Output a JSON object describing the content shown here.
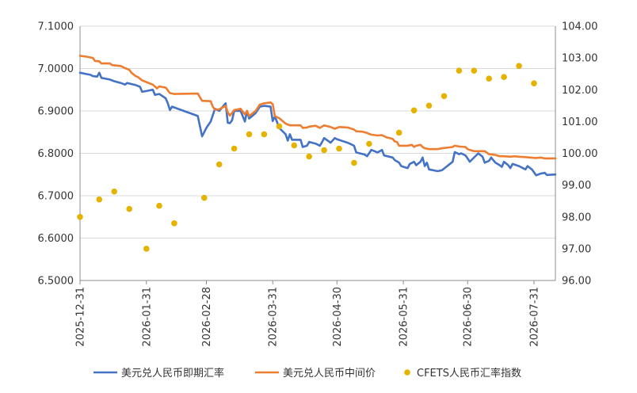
{
  "chart_data": {
    "type": "line",
    "title": "",
    "xlabel": "",
    "ylabel": "",
    "x_tick_labels": [
      "2025-12-31",
      "2026-01-31",
      "2026-02-28",
      "2026-03-31",
      "2026-04-30",
      "2026-05-31",
      "2026-06-30",
      "2026-07-31"
    ],
    "xlim": [
      "2025-12-31",
      "2026-08-10"
    ],
    "y_left": {
      "ylim": [
        6.5,
        7.1
      ],
      "tick_labels": [
        "6.5000",
        "6.6000",
        "6.7000",
        "6.8000",
        "6.9000",
        "7.0000",
        "7.1000"
      ]
    },
    "y_right": {
      "ylim": [
        96.0,
        104.0
      ],
      "tick_labels": [
        "96.00",
        "97.00",
        "98.00",
        "99.00",
        "100.00",
        "101.00",
        "102.00",
        "103.00",
        "104.00"
      ]
    },
    "grid": "horizontal",
    "legend_position": "bottom",
    "series": [
      {
        "name": "美元兑人民币即期汇率",
        "type": "line",
        "axis": "left",
        "color": "#4472C4",
        "points": [
          [
            "2025-12-31",
            6.99
          ],
          [
            "2026-01-05",
            6.985
          ],
          [
            "2026-01-06",
            6.982
          ],
          [
            "2026-01-08",
            6.981
          ],
          [
            "2026-01-09",
            6.99
          ],
          [
            "2026-01-10",
            6.978
          ],
          [
            "2026-01-14",
            6.974
          ],
          [
            "2026-01-16",
            6.97
          ],
          [
            "2026-01-19",
            6.966
          ],
          [
            "2026-01-21",
            6.962
          ],
          [
            "2026-01-22",
            6.966
          ],
          [
            "2026-01-26",
            6.961
          ],
          [
            "2026-01-28",
            6.957
          ],
          [
            "2026-01-29",
            6.945
          ],
          [
            "2026-01-31",
            6.947
          ],
          [
            "2026-02-03",
            6.95
          ],
          [
            "2026-02-04",
            6.938
          ],
          [
            "2026-02-06",
            6.94
          ],
          [
            "2026-02-09",
            6.93
          ],
          [
            "2026-02-10",
            6.918
          ],
          [
            "2026-02-11",
            6.902
          ],
          [
            "2026-02-12",
            6.91
          ],
          [
            "2026-02-24",
            6.888
          ],
          [
            "2026-02-26",
            6.84
          ],
          [
            "2026-02-28",
            6.86
          ],
          [
            "2026-03-02",
            6.875
          ],
          [
            "2026-03-04",
            6.905
          ],
          [
            "2026-03-06",
            6.9
          ],
          [
            "2026-03-09",
            6.918
          ],
          [
            "2026-03-10",
            6.872
          ],
          [
            "2026-03-11",
            6.871
          ],
          [
            "2026-03-12",
            6.878
          ],
          [
            "2026-03-13",
            6.9
          ],
          [
            "2026-03-16",
            6.9
          ],
          [
            "2026-03-18",
            6.875
          ],
          [
            "2026-03-19",
            6.9
          ],
          [
            "2026-03-20",
            6.882
          ],
          [
            "2026-03-23",
            6.895
          ],
          [
            "2026-03-25",
            6.91
          ],
          [
            "2026-03-27",
            6.912
          ],
          [
            "2026-03-30",
            6.91
          ],
          [
            "2026-03-31",
            6.876
          ],
          [
            "2026-04-01",
            6.887
          ],
          [
            "2026-04-02",
            6.874
          ],
          [
            "2026-04-03",
            6.86
          ],
          [
            "2026-04-06",
            6.845
          ],
          [
            "2026-04-07",
            6.83
          ],
          [
            "2026-04-08",
            6.845
          ],
          [
            "2026-04-09",
            6.832
          ],
          [
            "2026-04-13",
            6.832
          ],
          [
            "2026-04-14",
            6.815
          ],
          [
            "2026-04-16",
            6.818
          ],
          [
            "2026-04-17",
            6.827
          ],
          [
            "2026-04-20",
            6.823
          ],
          [
            "2026-04-22",
            6.818
          ],
          [
            "2026-04-23",
            6.826
          ],
          [
            "2026-04-24",
            6.836
          ],
          [
            "2026-04-27",
            6.825
          ],
          [
            "2026-04-29",
            6.836
          ],
          [
            "2026-04-30",
            6.833
          ],
          [
            "2026-05-05",
            6.825
          ],
          [
            "2026-05-08",
            6.818
          ],
          [
            "2026-05-09",
            6.802
          ],
          [
            "2026-05-13",
            6.797
          ],
          [
            "2026-05-14",
            6.793
          ],
          [
            "2026-05-15",
            6.8
          ],
          [
            "2026-05-16",
            6.808
          ],
          [
            "2026-05-19",
            6.802
          ],
          [
            "2026-05-21",
            6.808
          ],
          [
            "2026-05-22",
            6.795
          ],
          [
            "2026-05-26",
            6.79
          ],
          [
            "2026-05-27",
            6.784
          ],
          [
            "2026-05-29",
            6.778
          ],
          [
            "2026-05-30",
            6.77
          ],
          [
            "2026-06-02",
            6.765
          ],
          [
            "2026-06-03",
            6.775
          ],
          [
            "2026-06-05",
            6.78
          ],
          [
            "2026-06-06",
            6.772
          ],
          [
            "2026-06-08",
            6.78
          ],
          [
            "2026-06-09",
            6.79
          ],
          [
            "2026-06-10",
            6.77
          ],
          [
            "2026-06-11",
            6.778
          ],
          [
            "2026-06-12",
            6.762
          ],
          [
            "2026-06-16",
            6.758
          ],
          [
            "2026-06-18",
            6.76
          ],
          [
            "2026-06-20",
            6.768
          ],
          [
            "2026-06-23",
            6.78
          ],
          [
            "2026-06-24",
            6.803
          ],
          [
            "2026-06-26",
            6.798
          ],
          [
            "2026-06-27",
            6.8
          ],
          [
            "2026-06-29",
            6.795
          ],
          [
            "2026-06-30",
            6.788
          ],
          [
            "2026-07-01",
            6.78
          ],
          [
            "2026-07-02",
            6.785
          ],
          [
            "2026-07-05",
            6.8
          ],
          [
            "2026-07-07",
            6.792
          ],
          [
            "2026-07-08",
            6.778
          ],
          [
            "2026-07-10",
            6.782
          ],
          [
            "2026-07-11",
            6.79
          ],
          [
            "2026-07-13",
            6.778
          ],
          [
            "2026-07-15",
            6.772
          ],
          [
            "2026-07-16",
            6.768
          ],
          [
            "2026-07-17",
            6.78
          ],
          [
            "2026-07-19",
            6.772
          ],
          [
            "2026-07-20",
            6.765
          ],
          [
            "2026-07-21",
            6.775
          ],
          [
            "2026-07-24",
            6.77
          ],
          [
            "2026-07-27",
            6.762
          ],
          [
            "2026-07-28",
            6.77
          ],
          [
            "2026-07-30",
            6.762
          ],
          [
            "2026-08-01",
            6.748
          ],
          [
            "2026-08-03",
            6.752
          ],
          [
            "2026-08-05",
            6.754
          ],
          [
            "2026-08-06",
            6.749
          ],
          [
            "2026-08-10",
            6.75
          ]
        ]
      },
      {
        "name": "美元兑人民币中间价",
        "type": "line",
        "axis": "left",
        "color": "#ED7D31",
        "points": [
          [
            "2025-12-31",
            7.03
          ],
          [
            "2026-01-03",
            7.028
          ],
          [
            "2026-01-06",
            7.025
          ],
          [
            "2026-01-07",
            7.018
          ],
          [
            "2026-01-09",
            7.017
          ],
          [
            "2026-01-10",
            7.012
          ],
          [
            "2026-01-14",
            7.012
          ],
          [
            "2026-01-15",
            7.008
          ],
          [
            "2026-01-19",
            7.006
          ],
          [
            "2026-01-21",
            7.001
          ],
          [
            "2026-01-23",
            6.997
          ],
          [
            "2026-01-24",
            6.99
          ],
          [
            "2026-01-26",
            6.982
          ],
          [
            "2026-01-27",
            6.98
          ],
          [
            "2026-01-29",
            6.972
          ],
          [
            "2026-01-31",
            6.968
          ],
          [
            "2026-02-03",
            6.962
          ],
          [
            "2026-02-05",
            6.953
          ],
          [
            "2026-02-06",
            6.958
          ],
          [
            "2026-02-09",
            6.955
          ],
          [
            "2026-02-11",
            6.942
          ],
          [
            "2026-02-13",
            6.94
          ],
          [
            "2026-02-24",
            6.941
          ],
          [
            "2026-02-26",
            6.924
          ],
          [
            "2026-03-02",
            6.923
          ],
          [
            "2026-03-03",
            6.91
          ],
          [
            "2026-03-04",
            6.903
          ],
          [
            "2026-03-06",
            6.904
          ],
          [
            "2026-03-09",
            6.912
          ],
          [
            "2026-03-10",
            6.897
          ],
          [
            "2026-03-11",
            6.889
          ],
          [
            "2026-03-13",
            6.902
          ],
          [
            "2026-03-16",
            6.905
          ],
          [
            "2026-03-18",
            6.892
          ],
          [
            "2026-03-19",
            6.9
          ],
          [
            "2026-03-20",
            6.888
          ],
          [
            "2026-03-23",
            6.9
          ],
          [
            "2026-03-25",
            6.915
          ],
          [
            "2026-03-27",
            6.918
          ],
          [
            "2026-03-30",
            6.92
          ],
          [
            "2026-03-31",
            6.916
          ],
          [
            "2026-04-01",
            6.888
          ],
          [
            "2026-04-02",
            6.885
          ],
          [
            "2026-04-03",
            6.883
          ],
          [
            "2026-04-06",
            6.87
          ],
          [
            "2026-04-08",
            6.866
          ],
          [
            "2026-04-13",
            6.866
          ],
          [
            "2026-04-14",
            6.86
          ],
          [
            "2026-04-16",
            6.861
          ],
          [
            "2026-04-17",
            6.863
          ],
          [
            "2026-04-20",
            6.865
          ],
          [
            "2026-04-22",
            6.86
          ],
          [
            "2026-04-24",
            6.866
          ],
          [
            "2026-04-27",
            6.862
          ],
          [
            "2026-04-29",
            6.858
          ],
          [
            "2026-05-01",
            6.862
          ],
          [
            "2026-05-05",
            6.861
          ],
          [
            "2026-05-08",
            6.856
          ],
          [
            "2026-05-09",
            6.852
          ],
          [
            "2026-05-12",
            6.851
          ],
          [
            "2026-05-14",
            6.848
          ],
          [
            "2026-05-16",
            6.844
          ],
          [
            "2026-05-19",
            6.842
          ],
          [
            "2026-05-21",
            6.843
          ],
          [
            "2026-05-23",
            6.838
          ],
          [
            "2026-05-26",
            6.834
          ],
          [
            "2026-05-27",
            6.828
          ],
          [
            "2026-05-28",
            6.827
          ],
          [
            "2026-05-29",
            6.818
          ],
          [
            "2026-06-02",
            6.818
          ],
          [
            "2026-06-04",
            6.82
          ],
          [
            "2026-06-05",
            6.815
          ],
          [
            "2026-06-06",
            6.818
          ],
          [
            "2026-06-08",
            6.82
          ],
          [
            "2026-06-09",
            6.815
          ],
          [
            "2026-06-10",
            6.812
          ],
          [
            "2026-06-12",
            6.81
          ],
          [
            "2026-06-16",
            6.81
          ],
          [
            "2026-06-18",
            6.812
          ],
          [
            "2026-06-20",
            6.813
          ],
          [
            "2026-06-23",
            6.815
          ],
          [
            "2026-06-24",
            6.818
          ],
          [
            "2026-06-26",
            6.816
          ],
          [
            "2026-06-29",
            6.815
          ],
          [
            "2026-06-30",
            6.81
          ],
          [
            "2026-07-01",
            6.808
          ],
          [
            "2026-07-03",
            6.805
          ],
          [
            "2026-07-08",
            6.805
          ],
          [
            "2026-07-10",
            6.798
          ],
          [
            "2026-07-13",
            6.796
          ],
          [
            "2026-07-15",
            6.793
          ],
          [
            "2026-07-17",
            6.793
          ],
          [
            "2026-07-20",
            6.792
          ],
          [
            "2026-07-22",
            6.793
          ],
          [
            "2026-07-24",
            6.792
          ],
          [
            "2026-07-27",
            6.791
          ],
          [
            "2026-07-29",
            6.79
          ],
          [
            "2026-08-01",
            6.789
          ],
          [
            "2026-08-03",
            6.79
          ],
          [
            "2026-08-05",
            6.788
          ],
          [
            "2026-08-10",
            6.788
          ]
        ]
      },
      {
        "name": "CFETS人民币汇率指数",
        "type": "scatter",
        "axis": "right",
        "color": "#E5B200",
        "points": [
          [
            "2025-12-31",
            98.0
          ],
          [
            "2026-01-09",
            98.55
          ],
          [
            "2026-01-16",
            98.8
          ],
          [
            "2026-01-23",
            98.25
          ],
          [
            "2026-01-31",
            97.0
          ],
          [
            "2026-02-06",
            98.35
          ],
          [
            "2026-02-13",
            97.8
          ],
          [
            "2026-02-27",
            98.6
          ],
          [
            "2026-03-06",
            99.65
          ],
          [
            "2026-03-13",
            100.15
          ],
          [
            "2026-03-20",
            100.6
          ],
          [
            "2026-03-27",
            100.6
          ],
          [
            "2026-04-03",
            100.85
          ],
          [
            "2026-04-10",
            100.25
          ],
          [
            "2026-04-17",
            99.9
          ],
          [
            "2026-04-24",
            100.1
          ],
          [
            "2026-05-01",
            100.15
          ],
          [
            "2026-05-08",
            99.7
          ],
          [
            "2026-05-15",
            100.3
          ],
          [
            "2026-05-29",
            100.65
          ],
          [
            "2026-06-05",
            101.35
          ],
          [
            "2026-06-12",
            101.5
          ],
          [
            "2026-06-19",
            101.8
          ],
          [
            "2026-06-26",
            102.6
          ],
          [
            "2026-07-03",
            102.6
          ],
          [
            "2026-07-10",
            102.35
          ],
          [
            "2026-07-17",
            102.4
          ],
          [
            "2026-07-24",
            102.75
          ],
          [
            "2026-07-31",
            102.2
          ]
        ]
      }
    ]
  }
}
